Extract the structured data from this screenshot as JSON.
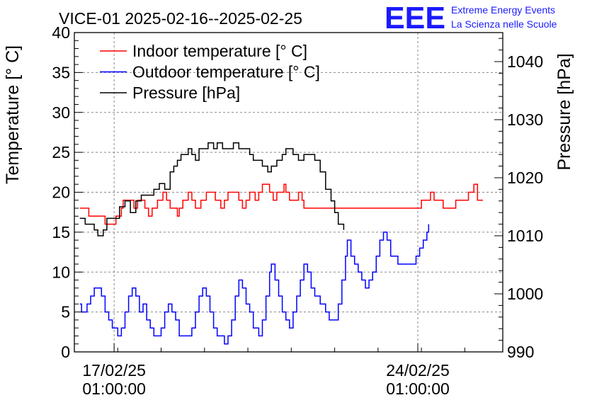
{
  "header": {
    "title": "VICE-01 2025-02-16--2025-02-25",
    "logo_text": "EEE",
    "logo_line1": "Extreme Energy Events",
    "logo_line2": "La Scienza nelle Scuole",
    "logo_color": "#1a1aff"
  },
  "chart_data": {
    "type": "line",
    "title": "VICE-01 2025-02-16--2025-02-25",
    "y_left_label": "Temperature [° C]",
    "y_right_label": "Pressure [hPa]",
    "y_left_lim": [
      0,
      40
    ],
    "y_right_lim": [
      990,
      1045
    ],
    "y_left_ticks": [
      "0",
      "5",
      "10",
      "15",
      "20",
      "25",
      "30",
      "35",
      "40"
    ],
    "y_right_ticks": [
      "990",
      "1000",
      "1010",
      "1020",
      "1030",
      "1040"
    ],
    "x_lim": [
      "2025-02-16 03:00",
      "2025-02-26 00:00"
    ],
    "x_ticks": [
      {
        "line1": "17/02/25",
        "line2": "01:00:00",
        "at": "2025-02-17 01:00"
      },
      {
        "line1": "24/02/25",
        "line2": "01:00:00",
        "at": "2025-02-24 01:00"
      }
    ],
    "grid": true,
    "legend_position": "top-left",
    "series": [
      {
        "name": "Indoor temperature [° C]",
        "axis": "left",
        "color": "#ff0000",
        "points": [
          [
            "2025-02-16 06:00",
            18
          ],
          [
            "2025-02-16 10:00",
            18
          ],
          [
            "2025-02-16 11:00",
            17
          ],
          [
            "2025-02-16 19:00",
            17
          ],
          [
            "2025-02-16 20:00",
            16
          ],
          [
            "2025-02-17 01:00",
            16
          ],
          [
            "2025-02-17 02:00",
            17
          ],
          [
            "2025-02-17 05:00",
            18
          ],
          [
            "2025-02-17 06:00",
            19
          ],
          [
            "2025-02-17 10:00",
            19
          ],
          [
            "2025-02-17 12:00",
            18
          ],
          [
            "2025-02-17 14:00",
            19
          ],
          [
            "2025-02-17 18:00",
            18
          ],
          [
            "2025-02-17 20:00",
            17
          ],
          [
            "2025-02-17 22:00",
            18
          ],
          [
            "2025-02-18 01:00",
            19
          ],
          [
            "2025-02-18 04:00",
            20
          ],
          [
            "2025-02-18 06:00",
            19
          ],
          [
            "2025-02-18 08:00",
            18
          ],
          [
            "2025-02-18 11:00",
            18
          ],
          [
            "2025-02-18 12:00",
            17
          ],
          [
            "2025-02-18 13:00",
            18
          ],
          [
            "2025-02-18 15:00",
            19
          ],
          [
            "2025-02-18 18:00",
            20
          ],
          [
            "2025-02-18 20:00",
            19
          ],
          [
            "2025-02-18 22:00",
            18
          ],
          [
            "2025-02-19 01:00",
            19
          ],
          [
            "2025-02-19 04:00",
            20
          ],
          [
            "2025-02-19 09:00",
            19
          ],
          [
            "2025-02-19 12:00",
            18
          ],
          [
            "2025-02-19 14:00",
            19
          ],
          [
            "2025-02-19 16:00",
            20
          ],
          [
            "2025-02-19 22:00",
            19
          ],
          [
            "2025-02-20 00:00",
            18
          ],
          [
            "2025-02-20 02:00",
            19
          ],
          [
            "2025-02-20 04:00",
            20
          ],
          [
            "2025-02-20 07:00",
            19
          ],
          [
            "2025-02-20 09:00",
            20
          ],
          [
            "2025-02-20 11:00",
            21
          ],
          [
            "2025-02-20 15:00",
            20
          ],
          [
            "2025-02-20 17:00",
            19
          ],
          [
            "2025-02-20 19:00",
            20
          ],
          [
            "2025-02-20 22:00",
            20
          ],
          [
            "2025-02-20 23:00",
            21
          ],
          [
            "2025-02-21 00:00",
            20
          ],
          [
            "2025-02-21 02:00",
            19
          ],
          [
            "2025-02-21 04:00",
            19
          ],
          [
            "2025-02-21 07:00",
            20
          ],
          [
            "2025-02-21 09:00",
            19
          ],
          [
            "2025-02-21 10:00",
            18
          ],
          [
            "2025-02-21 14:00",
            18
          ],
          [
            "2025-02-21 15:00",
            18
          ],
          [
            "2025-02-22 00:00",
            18
          ],
          [
            "2025-02-22 05:00",
            18
          ],
          [
            "2025-02-22 08:00",
            18
          ],
          [
            "2025-02-23 00:00",
            18
          ],
          [
            "2025-02-23 10:00",
            18
          ],
          [
            "2025-02-24 01:00",
            18
          ],
          [
            "2025-02-24 03:00",
            19
          ],
          [
            "2025-02-24 08:00",
            20
          ],
          [
            "2025-02-24 10:00",
            19
          ],
          [
            "2025-02-24 15:00",
            18
          ],
          [
            "2025-02-24 22:00",
            19
          ],
          [
            "2025-02-25 03:00",
            19
          ],
          [
            "2025-02-25 05:00",
            20
          ],
          [
            "2025-02-25 08:00",
            21
          ],
          [
            "2025-02-25 10:00",
            19
          ],
          [
            "2025-02-25 13:00",
            19
          ]
        ]
      },
      {
        "name": "Outdoor temperature [° C]",
        "axis": "left",
        "color": "#0000ff",
        "points": [
          [
            "2025-02-16 06:00",
            6
          ],
          [
            "2025-02-16 07:00",
            5
          ],
          [
            "2025-02-16 10:00",
            6
          ],
          [
            "2025-02-16 12:00",
            7
          ],
          [
            "2025-02-16 14:00",
            8
          ],
          [
            "2025-02-16 18:00",
            7
          ],
          [
            "2025-02-16 20:00",
            5
          ],
          [
            "2025-02-16 22:00",
            4
          ],
          [
            "2025-02-17 00:00",
            3
          ],
          [
            "2025-02-17 03:00",
            2
          ],
          [
            "2025-02-17 05:00",
            3
          ],
          [
            "2025-02-17 07:00",
            5
          ],
          [
            "2025-02-17 09:00",
            7
          ],
          [
            "2025-02-17 11:00",
            8
          ],
          [
            "2025-02-17 13:00",
            7
          ],
          [
            "2025-02-17 15:00",
            5
          ],
          [
            "2025-02-17 17:00",
            6
          ],
          [
            "2025-02-17 19:00",
            4
          ],
          [
            "2025-02-17 21:00",
            3
          ],
          [
            "2025-02-17 23:00",
            2
          ],
          [
            "2025-02-18 03:00",
            3
          ],
          [
            "2025-02-18 05:00",
            5
          ],
          [
            "2025-02-18 07:00",
            6
          ],
          [
            "2025-02-18 09:00",
            5
          ],
          [
            "2025-02-18 11:00",
            4
          ],
          [
            "2025-02-18 13:00",
            2
          ],
          [
            "2025-02-18 18:00",
            2
          ],
          [
            "2025-02-18 20:00",
            3
          ],
          [
            "2025-02-18 22:00",
            5
          ],
          [
            "2025-02-19 00:00",
            7
          ],
          [
            "2025-02-19 02:00",
            8
          ],
          [
            "2025-02-19 04:00",
            7
          ],
          [
            "2025-02-19 06:00",
            5
          ],
          [
            "2025-02-19 08:00",
            3
          ],
          [
            "2025-02-19 10:00",
            2
          ],
          [
            "2025-02-19 14:00",
            1
          ],
          [
            "2025-02-19 16:00",
            2
          ],
          [
            "2025-02-19 18:00",
            4
          ],
          [
            "2025-02-19 20:00",
            7
          ],
          [
            "2025-02-19 22:00",
            9
          ],
          [
            "2025-02-20 00:00",
            8
          ],
          [
            "2025-02-20 02:00",
            6
          ],
          [
            "2025-02-20 04:00",
            5
          ],
          [
            "2025-02-20 06:00",
            3
          ],
          [
            "2025-02-20 09:00",
            2
          ],
          [
            "2025-02-20 11:00",
            4
          ],
          [
            "2025-02-20 13:00",
            7
          ],
          [
            "2025-02-20 15:00",
            10
          ],
          [
            "2025-02-20 16:00",
            11
          ],
          [
            "2025-02-20 18:00",
            9
          ],
          [
            "2025-02-20 20:00",
            7
          ],
          [
            "2025-02-20 22:00",
            5
          ],
          [
            "2025-02-21 00:00",
            4
          ],
          [
            "2025-02-21 02:00",
            3
          ],
          [
            "2025-02-21 04:00",
            5
          ],
          [
            "2025-02-21 06:00",
            7
          ],
          [
            "2025-02-21 08:00",
            9
          ],
          [
            "2025-02-21 10:00",
            11
          ],
          [
            "2025-02-21 12:00",
            10
          ],
          [
            "2025-02-21 14:00",
            8
          ],
          [
            "2025-02-21 16:00",
            7
          ],
          [
            "2025-02-21 19:00",
            6
          ],
          [
            "2025-02-21 22:00",
            5
          ],
          [
            "2025-02-22 00:00",
            4
          ],
          [
            "2025-02-22 03:00",
            4
          ],
          [
            "2025-02-22 05:00",
            6
          ],
          [
            "2025-02-22 07:00",
            9
          ],
          [
            "2025-02-22 09:00",
            12
          ],
          [
            "2025-02-22 10:00",
            14
          ],
          [
            "2025-02-22 12:00",
            12
          ],
          [
            "2025-02-22 14:00",
            11
          ],
          [
            "2025-02-22 16:00",
            10
          ],
          [
            "2025-02-22 18:00",
            9
          ],
          [
            "2025-02-22 20:00",
            8
          ],
          [
            "2025-02-22 22:00",
            9
          ],
          [
            "2025-02-23 00:00",
            10
          ],
          [
            "2025-02-23 02:00",
            12
          ],
          [
            "2025-02-23 04:00",
            14
          ],
          [
            "2025-02-23 06:00",
            15
          ],
          [
            "2025-02-23 08:00",
            14
          ],
          [
            "2025-02-23 10:00",
            12
          ],
          [
            "2025-02-23 12:00",
            12
          ],
          [
            "2025-02-23 14:00",
            11
          ],
          [
            "2025-02-23 18:00",
            11
          ],
          [
            "2025-02-23 22:00",
            11
          ],
          [
            "2025-02-24 00:00",
            12
          ],
          [
            "2025-02-24 02:00",
            13
          ],
          [
            "2025-02-24 04:00",
            14
          ],
          [
            "2025-02-24 06:00",
            15
          ],
          [
            "2025-02-24 07:00",
            16
          ]
        ]
      },
      {
        "name": "Pressure [hPa]",
        "axis": "right",
        "color": "#000000",
        "points": [
          [
            "2025-02-16 06:00",
            1013
          ],
          [
            "2025-02-16 09:00",
            1012
          ],
          [
            "2025-02-16 14:00",
            1011
          ],
          [
            "2025-02-16 16:00",
            1010
          ],
          [
            "2025-02-16 19:00",
            1011
          ],
          [
            "2025-02-16 21:00",
            1013
          ],
          [
            "2025-02-17 01:00",
            1013
          ],
          [
            "2025-02-17 04:00",
            1015
          ],
          [
            "2025-02-17 07:00",
            1016
          ],
          [
            "2025-02-17 10:00",
            1014
          ],
          [
            "2025-02-17 13:00",
            1016
          ],
          [
            "2025-02-17 16:00",
            1017
          ],
          [
            "2025-02-17 20:00",
            1017
          ],
          [
            "2025-02-17 23:00",
            1018
          ],
          [
            "2025-02-18 02:00",
            1019
          ],
          [
            "2025-02-18 05:00",
            1018
          ],
          [
            "2025-02-18 08:00",
            1021
          ],
          [
            "2025-02-18 10:00",
            1022
          ],
          [
            "2025-02-18 12:00",
            1023
          ],
          [
            "2025-02-18 14:00",
            1024
          ],
          [
            "2025-02-18 16:00",
            1024
          ],
          [
            "2025-02-18 18:00",
            1025
          ],
          [
            "2025-02-18 20:00",
            1024
          ],
          [
            "2025-02-18 22:00",
            1023
          ],
          [
            "2025-02-19 00:00",
            1025
          ],
          [
            "2025-02-19 03:00",
            1025
          ],
          [
            "2025-02-19 05:00",
            1026
          ],
          [
            "2025-02-19 08:00",
            1025
          ],
          [
            "2025-02-19 10:00",
            1026
          ],
          [
            "2025-02-19 13:00",
            1025
          ],
          [
            "2025-02-19 16:00",
            1025
          ],
          [
            "2025-02-19 19:00",
            1026
          ],
          [
            "2025-02-19 22:00",
            1025
          ],
          [
            "2025-02-20 01:00",
            1025
          ],
          [
            "2025-02-20 04:00",
            1024
          ],
          [
            "2025-02-20 06:00",
            1023
          ],
          [
            "2025-02-20 08:00",
            1023
          ],
          [
            "2025-02-20 11:00",
            1022
          ],
          [
            "2025-02-20 14:00",
            1021
          ],
          [
            "2025-02-20 16:00",
            1022
          ],
          [
            "2025-02-20 19:00",
            1023
          ],
          [
            "2025-02-20 22:00",
            1024
          ],
          [
            "2025-02-21 00:00",
            1025
          ],
          [
            "2025-02-21 04:00",
            1024
          ],
          [
            "2025-02-21 07:00",
            1023
          ],
          [
            "2025-02-21 10:00",
            1024
          ],
          [
            "2025-02-21 13:00",
            1024
          ],
          [
            "2025-02-21 16:00",
            1023
          ],
          [
            "2025-02-21 19:00",
            1021
          ],
          [
            "2025-02-21 22:00",
            1018
          ],
          [
            "2025-02-22 01:00",
            1016
          ],
          [
            "2025-02-22 03:00",
            1014
          ],
          [
            "2025-02-22 05:00",
            1012
          ],
          [
            "2025-02-22 08:00",
            1011
          ]
        ]
      }
    ]
  }
}
